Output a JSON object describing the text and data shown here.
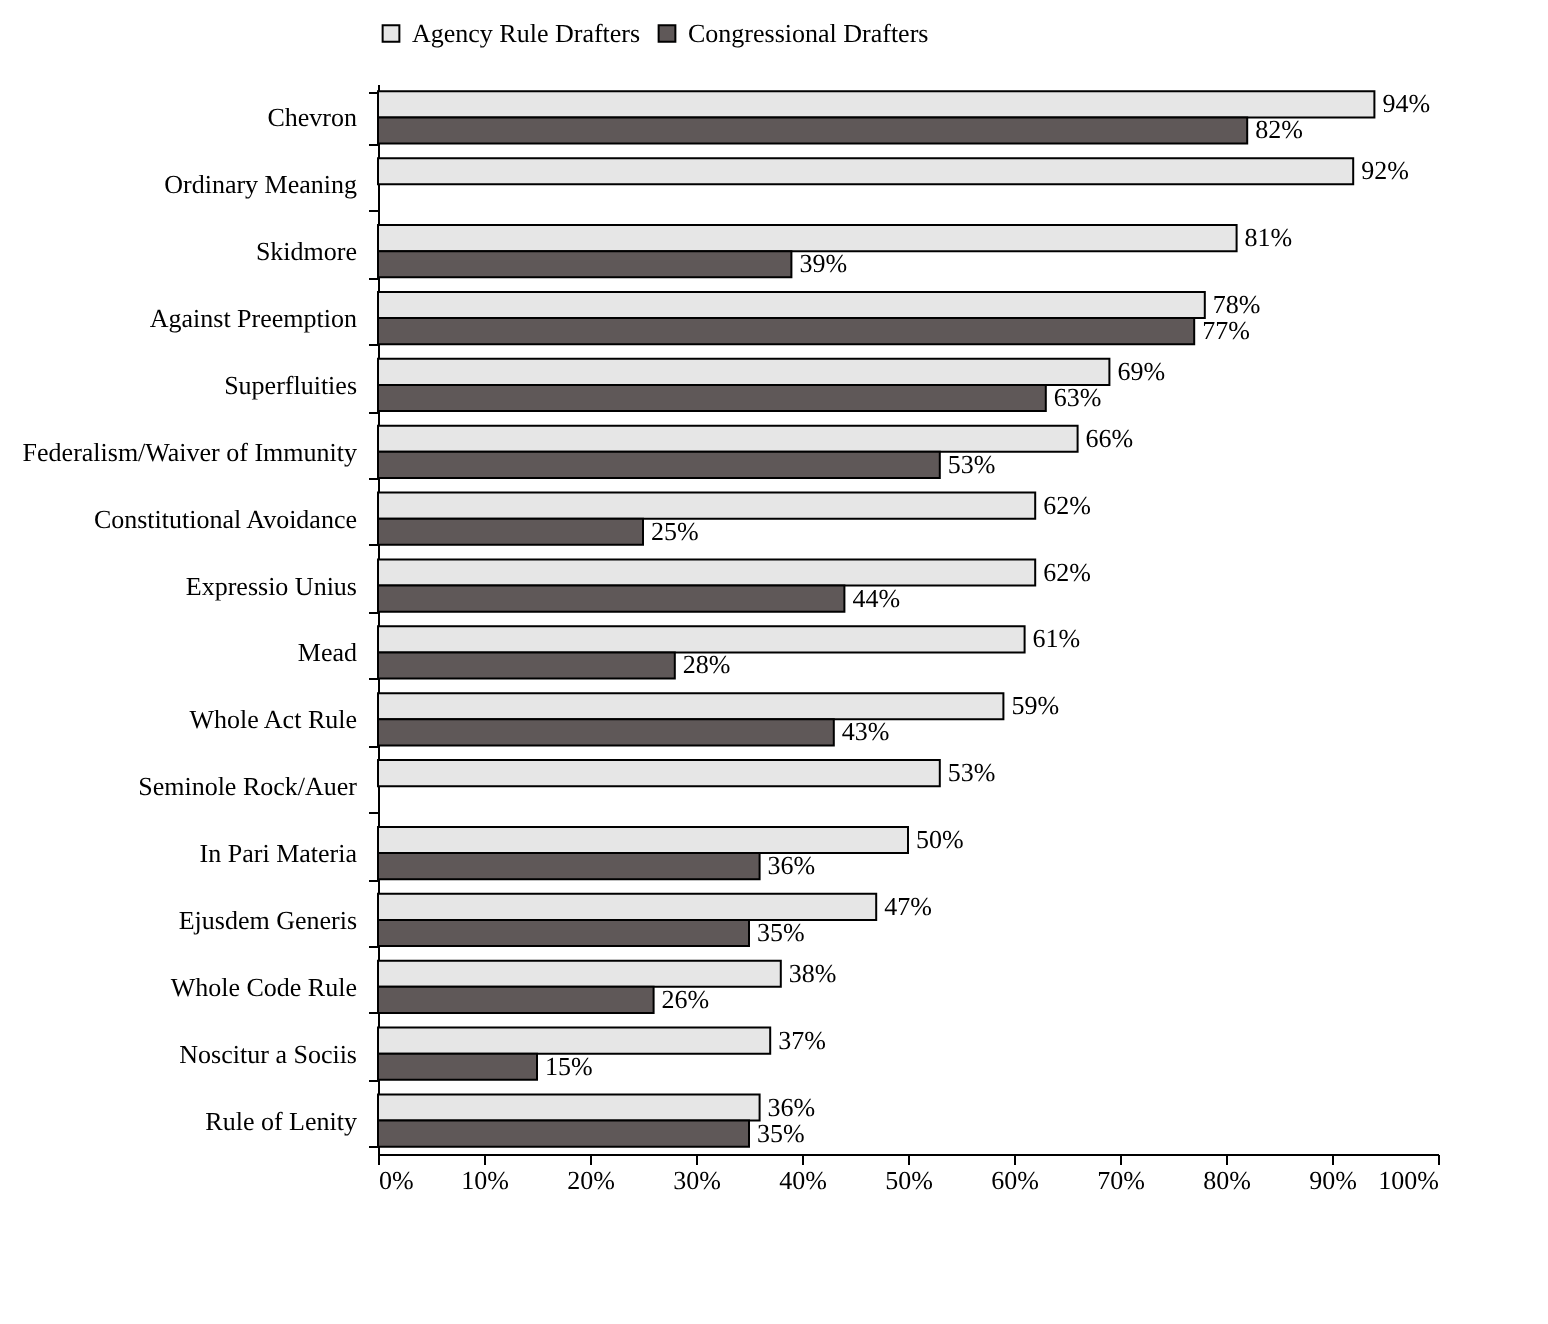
{
  "chart_data": {
    "type": "bar",
    "orientation": "horizontal",
    "legend": "top",
    "grid": false,
    "categories": [
      "Chevron",
      "Ordinary Meaning",
      "Skidmore",
      "Against Preemption",
      "Superfluities",
      "Federalism/Waiver of Immunity",
      "Constitutional Avoidance",
      "Expressio Unius",
      "Mead",
      "Whole Act Rule",
      "Seminole Rock/Auer",
      "In Pari Materia",
      "Ejusdem Generis",
      "Whole Code Rule",
      "Noscitur a Sociis",
      "Rule of Lenity"
    ],
    "series": [
      {
        "name": "Agency Rule Drafters",
        "color": "#e6e6e6",
        "values": [
          94,
          92,
          81,
          78,
          69,
          66,
          62,
          62,
          61,
          59,
          53,
          50,
          47,
          38,
          37,
          36
        ],
        "value_labels": [
          "94%",
          "92%",
          "81%",
          "78%",
          "69%",
          "66%",
          "62%",
          "62%",
          "61%",
          "59%",
          "53%",
          "50%",
          "47%",
          "38%",
          "37%",
          "36%"
        ]
      },
      {
        "name": "Congressional Drafters",
        "color": "#5f5858",
        "values": [
          82,
          null,
          39,
          77,
          63,
          53,
          25,
          44,
          28,
          43,
          null,
          36,
          35,
          26,
          15,
          35
        ],
        "value_labels": [
          "82%",
          null,
          "39%",
          "77%",
          "63%",
          "53%",
          "25%",
          "44%",
          "28%",
          "43%",
          null,
          "36%",
          "35%",
          "26%",
          "15%",
          "35%"
        ]
      }
    ],
    "xlim": [
      0,
      100
    ],
    "xticks": [
      {
        "value": 0,
        "label": "0%"
      },
      {
        "value": 10,
        "label": "10%"
      },
      {
        "value": 20,
        "label": "20%"
      },
      {
        "value": 30,
        "label": "30%"
      },
      {
        "value": 40,
        "label": "40%"
      },
      {
        "value": 50,
        "label": "50%"
      },
      {
        "value": 60,
        "label": "60%"
      },
      {
        "value": 70,
        "label": "70%"
      },
      {
        "value": 80,
        "label": "80%"
      },
      {
        "value": 90,
        "label": "90%"
      },
      {
        "value": 100,
        "label": "100%"
      }
    ]
  }
}
